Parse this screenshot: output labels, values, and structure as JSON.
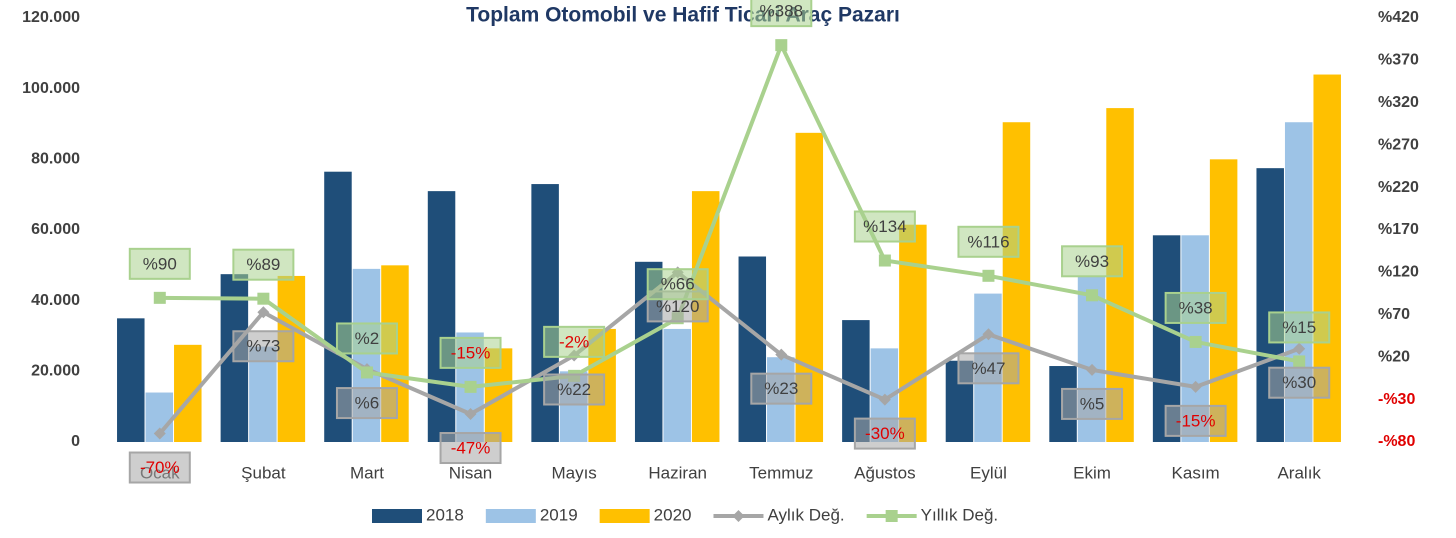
{
  "chart_data": {
    "type": "bar",
    "title": "Toplam Otomobil ve Hafif Ticari Araç Pazarı",
    "categories": [
      "Ocak",
      "Şubat",
      "Mart",
      "Nisan",
      "Mayıs",
      "Haziran",
      "Temmuz",
      "Ağustos",
      "Eylül",
      "Ekim",
      "Kasım",
      "Aralık"
    ],
    "ylim": [
      0,
      120000
    ],
    "yticks": [
      {
        "value": 0,
        "label": "0"
      },
      {
        "value": 20000,
        "label": "20.000"
      },
      {
        "value": 40000,
        "label": "40.000"
      },
      {
        "value": 60000,
        "label": "60.000"
      },
      {
        "value": 80000,
        "label": "80.000"
      },
      {
        "value": 100000,
        "label": "100.000"
      },
      {
        "value": 120000,
        "label": "120.000"
      }
    ],
    "y2lim": [
      -80,
      420
    ],
    "y2ticks": [
      {
        "value": -80,
        "label": "-%80"
      },
      {
        "value": -30,
        "label": "-%30"
      },
      {
        "value": 20,
        "label": "%20"
      },
      {
        "value": 70,
        "label": "%70"
      },
      {
        "value": 120,
        "label": "%120"
      },
      {
        "value": 170,
        "label": "%170"
      },
      {
        "value": 220,
        "label": "%220"
      },
      {
        "value": 270,
        "label": "%270"
      },
      {
        "value": 320,
        "label": "%320"
      },
      {
        "value": 370,
        "label": "%370"
      },
      {
        "value": 420,
        "label": "%420"
      }
    ],
    "series": [
      {
        "name": "2018",
        "type": "bar",
        "color": "#1f4e79",
        "values": [
          35000,
          47500,
          76500,
          71000,
          73000,
          51000,
          52500,
          34500,
          23000,
          21500,
          58500,
          77500
        ]
      },
      {
        "name": "2019",
        "type": "bar",
        "color": "#9dc3e6",
        "values": [
          14000,
          27000,
          49000,
          31000,
          20000,
          32000,
          24000,
          26500,
          42000,
          47000,
          58500,
          90500
        ]
      },
      {
        "name": "2020",
        "type": "bar",
        "color": "#ffc000",
        "values": [
          27500,
          47000,
          50000,
          26500,
          32000,
          71000,
          87500,
          61500,
          90500,
          94500,
          80000,
          104000
        ]
      },
      {
        "name": "Aylık Değ.",
        "type": "line",
        "axis": "y2",
        "color": "#a6a6a6",
        "values": [
          -70,
          73,
          6,
          -47,
          22,
          120,
          23,
          -30,
          47,
          5,
          -15,
          30
        ],
        "value_labels": [
          "-70%",
          "%73",
          "%6",
          "-47%",
          "%22",
          "%120",
          "%23",
          "-30%",
          "%47",
          "%5",
          "-15%",
          "%30"
        ]
      },
      {
        "name": "Yıllık Değ.",
        "type": "line",
        "axis": "y2",
        "color": "#a9d18e",
        "values": [
          90,
          89,
          2,
          -15,
          -2,
          66,
          388,
          134,
          116,
          93,
          38,
          15
        ],
        "value_labels": [
          "%90",
          "%89",
          "%2",
          "-15%",
          "-2%",
          "%66",
          "%388",
          "%134",
          "%116",
          "%93",
          "%38",
          "%15"
        ]
      }
    ]
  }
}
